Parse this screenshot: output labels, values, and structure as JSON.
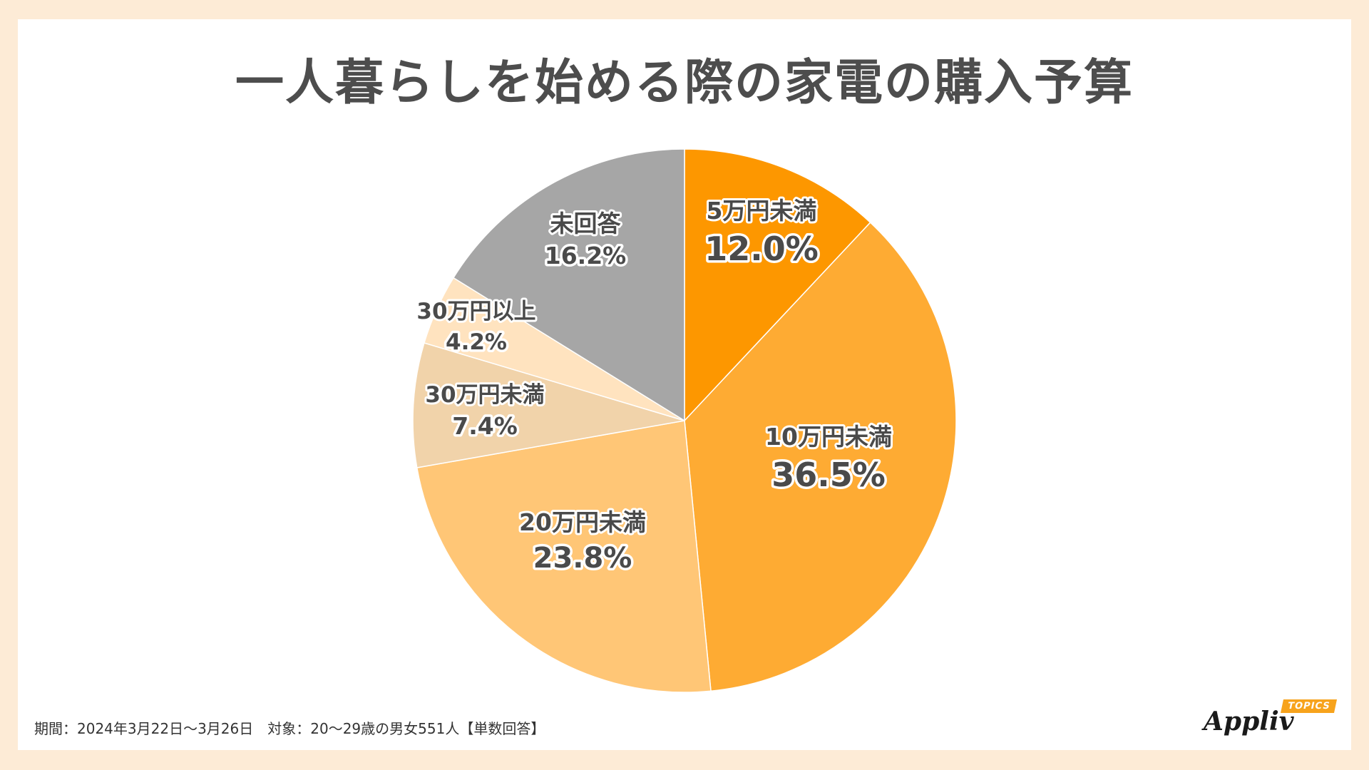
{
  "title": "一人暮らしを始める際の家電の購入予算",
  "footnote": "期間：2024年3月22日～3月26日　対象：20～29歳の男女551人【単数回答】",
  "logo": {
    "name": "Appliv",
    "badge": "TOPICS"
  },
  "chart_data": {
    "type": "pie",
    "title": "一人暮らしを始める際の家電の購入予算",
    "start_angle": "12 o'clock",
    "direction": "clockwise",
    "slices": [
      {
        "label": "5万円未満",
        "value": 12.0,
        "display": "12.0%",
        "color": "#fd9700"
      },
      {
        "label": "10万円未満",
        "value": 36.5,
        "display": "36.5%",
        "color": "#feab33"
      },
      {
        "label": "20万円未満",
        "value": 23.8,
        "display": "23.8%",
        "color": "#ffc676"
      },
      {
        "label": "30万円未満",
        "value": 7.4,
        "display": "7.4%",
        "color": "#f1d3aa"
      },
      {
        "label": "30万円以上",
        "value": 4.2,
        "display": "4.2%",
        "color": "#ffe3bf"
      },
      {
        "label": "未回答",
        "value": 16.2,
        "display": "16.2%",
        "color": "#a6a6a6"
      }
    ]
  }
}
